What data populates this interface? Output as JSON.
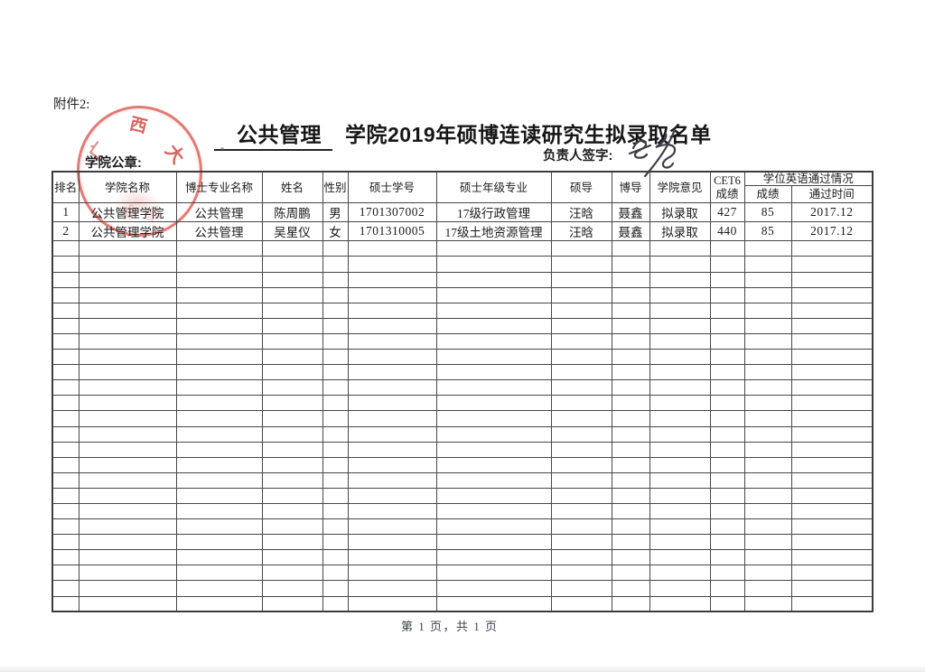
{
  "document": {
    "attachment_label": "附件2:",
    "title": {
      "underlined": "公共管理",
      "rest": "学院2019年硕博连读研究生拟录取名单"
    },
    "seal_label": "学院公章:",
    "signature_label": "负责人签字:",
    "footer_pagination": "第 1 页，共 1 页"
  },
  "stamp": {
    "color": "#d63e34",
    "visible_chars": {
      "left": "广",
      "top": "西",
      "right": "大",
      "bottom_faint_1": "学",
      "bottom_faint_2": "院"
    }
  },
  "table": {
    "headers": {
      "rank": "排名",
      "college": "学院名称",
      "phd_major": "博士专业名称",
      "name": "姓名",
      "gender": "性别",
      "master_id": "硕士学号",
      "master_grade_major": "硕士年级专业",
      "master_advisor": "硕导",
      "phd_advisor": "博导",
      "college_opinion": "学院意见",
      "cet6_line1": "CET6",
      "cet6_line2": "成绩",
      "degree_english_group": "学位英语通过情况",
      "degree_score": "成绩",
      "pass_time": "通过时间"
    },
    "rows": [
      {
        "rank": "1",
        "college": "公共管理学院",
        "phd_major": "公共管理",
        "name": "陈周鹏",
        "gender": "男",
        "master_id": "1701307002",
        "master_grade_major": "17级行政管理",
        "master_advisor": "汪晗",
        "phd_advisor": "聂鑫",
        "college_opinion": "拟录取",
        "cet6": "427",
        "degree_score": "85",
        "pass_time": "2017.12"
      },
      {
        "rank": "2",
        "college": "公共管理学院",
        "phd_major": "公共管理",
        "name": "吴星仪",
        "gender": "女",
        "master_id": "1701310005",
        "master_grade_major": "17级土地资源管理",
        "master_advisor": "汪晗",
        "phd_advisor": "聂鑫",
        "college_opinion": "拟录取",
        "cet6": "440",
        "degree_score": "85",
        "pass_time": "2017.12"
      }
    ],
    "empty_row_count": 24
  }
}
